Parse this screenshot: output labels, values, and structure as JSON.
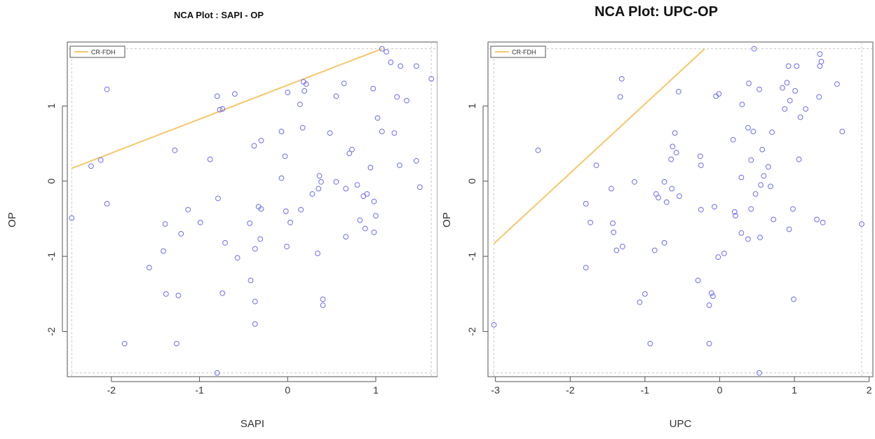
{
  "chart_data": [
    {
      "type": "scatter",
      "title": "NCA Plot : SAPI - OP",
      "xlabel": "SAPI",
      "ylabel": "OP",
      "xlim": [
        -2.5,
        1.7
      ],
      "ylim": [
        -2.6,
        1.85
      ],
      "xticks": [
        -2,
        -1,
        0,
        1
      ],
      "yticks": [
        -2,
        -1,
        0,
        1
      ],
      "grid": false,
      "legend": {
        "position": "top-left",
        "entries": [
          "CR-FDH"
        ]
      },
      "scope_lines": {
        "xmin": -2.45,
        "xmax": 1.63,
        "ymin": -2.55,
        "ymax": 1.76
      },
      "ceiling_line": {
        "name": "CR-FDH",
        "color": "#f5c76b",
        "x": [
          -2.45,
          1.07
        ],
        "y": [
          0.17,
          1.76
        ]
      },
      "point_color": "#6c6cf0",
      "points": [
        [
          -2.45,
          -0.49
        ],
        [
          -2.23,
          0.2
        ],
        [
          -2.12,
          0.28
        ],
        [
          -2.05,
          1.22
        ],
        [
          -2.05,
          -0.3
        ],
        [
          -1.85,
          -2.16
        ],
        [
          -1.57,
          -1.15
        ],
        [
          -1.41,
          -0.93
        ],
        [
          -1.39,
          -0.57
        ],
        [
          -1.38,
          -1.5
        ],
        [
          -1.28,
          0.41
        ],
        [
          -1.26,
          -2.16
        ],
        [
          -1.24,
          -1.52
        ],
        [
          -1.21,
          -0.7
        ],
        [
          -1.13,
          -0.38
        ],
        [
          -0.99,
          -0.55
        ],
        [
          -0.88,
          0.29
        ],
        [
          -0.8,
          1.13
        ],
        [
          -0.79,
          -0.23
        ],
        [
          -0.77,
          0.95
        ],
        [
          -0.74,
          0.96
        ],
        [
          -0.74,
          -1.49
        ],
        [
          -0.71,
          -0.82
        ],
        [
          -0.8,
          -2.55
        ],
        [
          -0.6,
          1.16
        ],
        [
          -0.57,
          -1.02
        ],
        [
          -0.43,
          -0.56
        ],
        [
          -0.42,
          -1.32
        ],
        [
          -0.38,
          0.47
        ],
        [
          -0.37,
          -0.9
        ],
        [
          -0.37,
          -1.6
        ],
        [
          -0.37,
          -1.9
        ],
        [
          -0.33,
          -0.34
        ],
        [
          -0.31,
          -0.77
        ],
        [
          -0.3,
          0.54
        ],
        [
          -0.3,
          -0.37
        ],
        [
          -0.07,
          0.04
        ],
        [
          -0.07,
          0.66
        ],
        [
          -0.03,
          0.33
        ],
        [
          -0.02,
          -0.4
        ],
        [
          -0.01,
          -0.87
        ],
        [
          0.0,
          1.18
        ],
        [
          0.03,
          -0.55
        ],
        [
          0.14,
          1.02
        ],
        [
          0.15,
          -0.38
        ],
        [
          0.17,
          0.71
        ],
        [
          0.18,
          1.32
        ],
        [
          0.19,
          1.2
        ],
        [
          0.21,
          1.29
        ],
        [
          0.28,
          -0.17
        ],
        [
          0.34,
          -0.96
        ],
        [
          0.35,
          -0.1
        ],
        [
          0.36,
          0.07
        ],
        [
          0.38,
          -0.01
        ],
        [
          0.4,
          -1.57
        ],
        [
          0.4,
          -1.65
        ],
        [
          0.48,
          0.64
        ],
        [
          0.55,
          -0.01
        ],
        [
          0.55,
          1.13
        ],
        [
          0.64,
          1.3
        ],
        [
          0.66,
          -0.1
        ],
        [
          0.66,
          -0.74
        ],
        [
          0.7,
          0.37
        ],
        [
          0.73,
          0.42
        ],
        [
          0.79,
          -0.05
        ],
        [
          0.82,
          -0.52
        ],
        [
          0.86,
          -0.2
        ],
        [
          0.88,
          -0.63
        ],
        [
          0.9,
          -0.17
        ],
        [
          0.94,
          0.18
        ],
        [
          0.98,
          -0.27
        ],
        [
          0.98,
          -0.68
        ],
        [
          1.0,
          -0.46
        ],
        [
          0.97,
          1.23
        ],
        [
          1.02,
          0.84
        ],
        [
          1.07,
          0.66
        ],
        [
          1.07,
          1.76
        ],
        [
          1.12,
          1.72
        ],
        [
          1.17,
          1.58
        ],
        [
          1.21,
          0.64
        ],
        [
          1.24,
          1.12
        ],
        [
          1.27,
          0.21
        ],
        [
          1.28,
          1.53
        ],
        [
          1.35,
          1.07
        ],
        [
          1.46,
          0.27
        ],
        [
          1.46,
          1.53
        ],
        [
          1.5,
          -0.08
        ],
        [
          1.63,
          1.36
        ]
      ]
    },
    {
      "type": "scatter",
      "title": "NCA Plot: UPC-OP",
      "xlabel": "UPC",
      "ylabel": "OP",
      "xlim": [
        -3.1,
        2.05
      ],
      "ylim": [
        -2.6,
        1.85
      ],
      "xticks": [
        -3,
        -2,
        -1,
        0,
        1,
        2
      ],
      "yticks": [
        -2,
        -1,
        0,
        1
      ],
      "grid": false,
      "legend": {
        "position": "top-left",
        "entries": [
          "CR-FDH"
        ]
      },
      "scope_lines": {
        "xmin": -3.02,
        "xmax": 1.9,
        "ymin": -2.55,
        "ymax": 1.76
      },
      "ceiling_line": {
        "name": "CR-FDH",
        "color": "#f5c76b",
        "x": [
          -3.02,
          -0.2
        ],
        "y": [
          -0.83,
          1.76
        ]
      },
      "point_color": "#6c6cf0",
      "points": [
        [
          -3.02,
          -1.91
        ],
        [
          -2.43,
          0.41
        ],
        [
          -1.79,
          -0.3
        ],
        [
          -1.79,
          -1.15
        ],
        [
          -1.73,
          -0.55
        ],
        [
          -1.65,
          0.21
        ],
        [
          -1.45,
          -0.1
        ],
        [
          -1.43,
          -0.56
        ],
        [
          -1.42,
          -0.68
        ],
        [
          -1.38,
          -0.92
        ],
        [
          -1.33,
          1.12
        ],
        [
          -1.31,
          1.36
        ],
        [
          -1.3,
          -0.87
        ],
        [
          -1.14,
          -0.01
        ],
        [
          -1.07,
          -1.61
        ],
        [
          -1.0,
          -1.5
        ],
        [
          -0.93,
          -2.16
        ],
        [
          -0.87,
          -0.92
        ],
        [
          -0.85,
          -0.17
        ],
        [
          -0.82,
          -0.22
        ],
        [
          -0.74,
          -0.01
        ],
        [
          -0.74,
          -0.82
        ],
        [
          -0.71,
          -0.28
        ],
        [
          -0.65,
          0.29
        ],
        [
          -0.63,
          0.46
        ],
        [
          -0.6,
          0.64
        ],
        [
          -0.58,
          0.38
        ],
        [
          -0.55,
          1.19
        ],
        [
          -0.54,
          -0.2
        ],
        [
          -0.64,
          -0.1
        ],
        [
          -0.29,
          -1.32
        ],
        [
          -0.26,
          0.33
        ],
        [
          -0.25,
          0.21
        ],
        [
          -0.25,
          -0.38
        ],
        [
          -0.14,
          -1.65
        ],
        [
          -0.14,
          -2.16
        ],
        [
          -0.11,
          -1.49
        ],
        [
          -0.09,
          -1.53
        ],
        [
          -0.07,
          -0.34
        ],
        [
          -0.05,
          1.13
        ],
        [
          -0.01,
          1.16
        ],
        [
          -0.02,
          -1.01
        ],
        [
          0.06,
          -0.96
        ],
        [
          0.18,
          0.55
        ],
        [
          0.2,
          -0.41
        ],
        [
          0.21,
          -0.46
        ],
        [
          0.29,
          0.05
        ],
        [
          0.29,
          -0.69
        ],
        [
          0.3,
          1.02
        ],
        [
          0.38,
          0.71
        ],
        [
          0.38,
          -0.77
        ],
        [
          0.39,
          1.3
        ],
        [
          0.42,
          0.28
        ],
        [
          0.42,
          -0.37
        ],
        [
          0.45,
          0.66
        ],
        [
          0.46,
          1.76
        ],
        [
          0.48,
          -0.17
        ],
        [
          0.53,
          1.22
        ],
        [
          0.54,
          -0.75
        ],
        [
          0.55,
          -0.05
        ],
        [
          0.57,
          0.42
        ],
        [
          0.59,
          0.07
        ],
        [
          0.53,
          -2.55
        ],
        [
          0.65,
          0.19
        ],
        [
          0.68,
          -0.07
        ],
        [
          0.7,
          0.65
        ],
        [
          0.72,
          -0.51
        ],
        [
          0.84,
          1.24
        ],
        [
          0.87,
          0.96
        ],
        [
          0.9,
          1.31
        ],
        [
          0.92,
          1.53
        ],
        [
          0.93,
          -0.64
        ],
        [
          0.94,
          1.07
        ],
        [
          0.98,
          -0.37
        ],
        [
          0.99,
          -1.57
        ],
        [
          1.01,
          1.2
        ],
        [
          1.03,
          1.53
        ],
        [
          1.06,
          0.29
        ],
        [
          1.08,
          0.85
        ],
        [
          1.15,
          0.96
        ],
        [
          1.3,
          -0.51
        ],
        [
          1.33,
          1.12
        ],
        [
          1.34,
          1.53
        ],
        [
          1.34,
          1.69
        ],
        [
          1.36,
          1.59
        ],
        [
          1.38,
          -0.55
        ],
        [
          1.57,
          1.29
        ],
        [
          1.64,
          0.66
        ],
        [
          1.9,
          -0.57
        ]
      ]
    }
  ]
}
